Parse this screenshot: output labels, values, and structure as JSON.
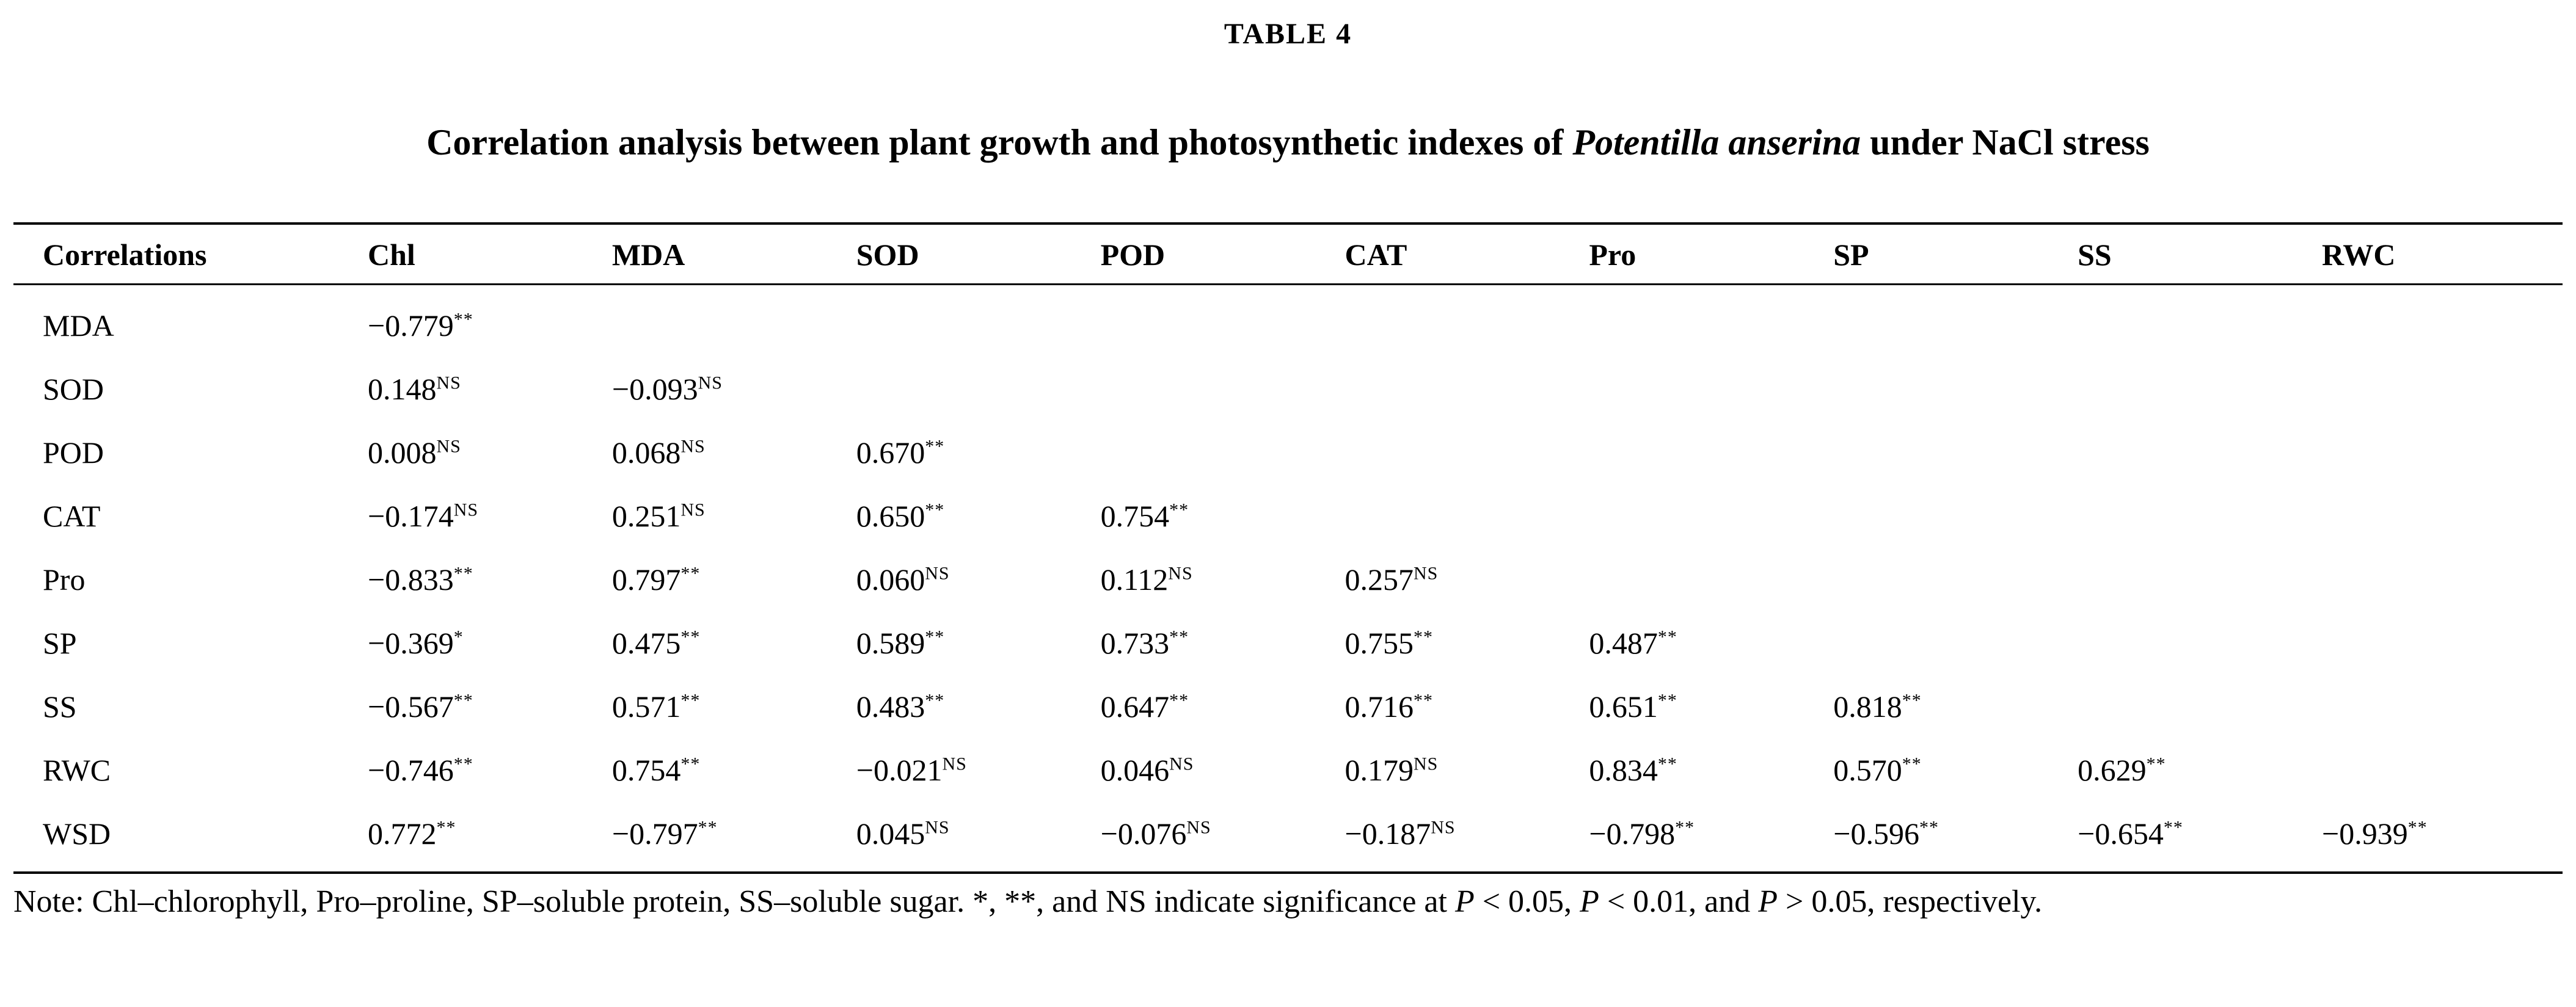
{
  "table_label": "TABLE 4",
  "title": {
    "segments": [
      {
        "text": "Correlation analysis between plant growth and photosynthetic indexes of ",
        "italic": false
      },
      {
        "text": "Potentilla anserina",
        "italic": true
      },
      {
        "text": " under NaCl stress",
        "italic": false
      }
    ]
  },
  "table": {
    "columns": [
      "Correlations",
      "Chl",
      "MDA",
      "SOD",
      "POD",
      "CAT",
      "Pro",
      "SP",
      "SS",
      "RWC"
    ],
    "rows": [
      {
        "label": "MDA",
        "cells": [
          {
            "value": "−0.779",
            "sig": "**"
          }
        ]
      },
      {
        "label": "SOD",
        "cells": [
          {
            "value": "0.148",
            "sig": "NS"
          },
          {
            "value": "−0.093",
            "sig": "NS"
          }
        ]
      },
      {
        "label": "POD",
        "cells": [
          {
            "value": "0.008",
            "sig": "NS"
          },
          {
            "value": "0.068",
            "sig": "NS"
          },
          {
            "value": "0.670",
            "sig": "**"
          }
        ]
      },
      {
        "label": "CAT",
        "cells": [
          {
            "value": "−0.174",
            "sig": "NS"
          },
          {
            "value": "0.251",
            "sig": "NS"
          },
          {
            "value": "0.650",
            "sig": "**"
          },
          {
            "value": "0.754",
            "sig": "**"
          }
        ]
      },
      {
        "label": "Pro",
        "cells": [
          {
            "value": "−0.833",
            "sig": "**"
          },
          {
            "value": "0.797",
            "sig": "**"
          },
          {
            "value": "0.060",
            "sig": "NS"
          },
          {
            "value": "0.112",
            "sig": "NS"
          },
          {
            "value": "0.257",
            "sig": "NS"
          }
        ]
      },
      {
        "label": "SP",
        "cells": [
          {
            "value": "−0.369",
            "sig": "*"
          },
          {
            "value": "0.475",
            "sig": "**"
          },
          {
            "value": "0.589",
            "sig": "**"
          },
          {
            "value": "0.733",
            "sig": "**"
          },
          {
            "value": "0.755",
            "sig": "**"
          },
          {
            "value": "0.487",
            "sig": "**"
          }
        ]
      },
      {
        "label": "SS",
        "cells": [
          {
            "value": "−0.567",
            "sig": "**"
          },
          {
            "value": "0.571",
            "sig": "**"
          },
          {
            "value": "0.483",
            "sig": "**"
          },
          {
            "value": "0.647",
            "sig": "**"
          },
          {
            "value": "0.716",
            "sig": "**"
          },
          {
            "value": "0.651",
            "sig": "**"
          },
          {
            "value": "0.818",
            "sig": "**"
          }
        ]
      },
      {
        "label": "RWC",
        "cells": [
          {
            "value": "−0.746",
            "sig": "**"
          },
          {
            "value": "0.754",
            "sig": "**"
          },
          {
            "value": "−0.021",
            "sig": "NS"
          },
          {
            "value": "0.046",
            "sig": "NS"
          },
          {
            "value": "0.179",
            "sig": "NS"
          },
          {
            "value": "0.834",
            "sig": "**"
          },
          {
            "value": "0.570",
            "sig": "**"
          },
          {
            "value": "0.629",
            "sig": "**"
          }
        ]
      },
      {
        "label": "WSD",
        "cells": [
          {
            "value": "0.772",
            "sig": "**"
          },
          {
            "value": "−0.797",
            "sig": "**"
          },
          {
            "value": "0.045",
            "sig": "NS"
          },
          {
            "value": "−0.076",
            "sig": "NS"
          },
          {
            "value": "−0.187",
            "sig": "NS"
          },
          {
            "value": "−0.798",
            "sig": "**"
          },
          {
            "value": "−0.596",
            "sig": "**"
          },
          {
            "value": "−0.654",
            "sig": "**"
          },
          {
            "value": "−0.939",
            "sig": "**"
          }
        ]
      }
    ]
  },
  "note": {
    "segments": [
      {
        "text": "Note: Chl–chlorophyll, Pro–proline, SP–soluble protein, SS–soluble sugar. *, **, and NS indicate significance at ",
        "italic": false
      },
      {
        "text": "P",
        "italic": true
      },
      {
        "text": " < 0.05, ",
        "italic": false
      },
      {
        "text": "P",
        "italic": true
      },
      {
        "text": " < 0.01, and ",
        "italic": false
      },
      {
        "text": "P",
        "italic": true
      },
      {
        "text": " > 0.05, respectively.",
        "italic": false
      }
    ]
  }
}
